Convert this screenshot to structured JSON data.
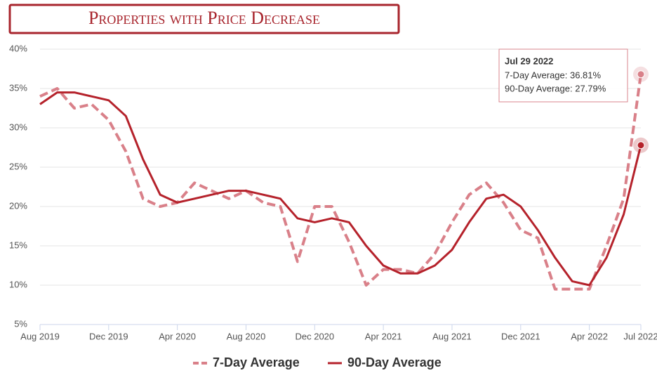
{
  "chart_data": {
    "type": "line",
    "title": "Properties with Price Decrease",
    "x": [
      "2019-08",
      "2019-09",
      "2019-10",
      "2019-11",
      "2019-12",
      "2020-01",
      "2020-02",
      "2020-03",
      "2020-04",
      "2020-05",
      "2020-06",
      "2020-07",
      "2020-08",
      "2020-09",
      "2020-10",
      "2020-11",
      "2020-12",
      "2021-01",
      "2021-02",
      "2021-03",
      "2021-04",
      "2021-05",
      "2021-06",
      "2021-07",
      "2021-08",
      "2021-09",
      "2021-10",
      "2021-11",
      "2021-12",
      "2022-01",
      "2022-02",
      "2022-03",
      "2022-04",
      "2022-05",
      "2022-06",
      "2022-07"
    ],
    "xticks": [
      {
        "value": "2019-08",
        "label": "Aug 2019"
      },
      {
        "value": "2019-12",
        "label": "Dec 2019"
      },
      {
        "value": "2020-04",
        "label": "Apr 2020"
      },
      {
        "value": "2020-08",
        "label": "Aug 2020"
      },
      {
        "value": "2020-12",
        "label": "Dec 2020"
      },
      {
        "value": "2021-04",
        "label": "Apr 2021"
      },
      {
        "value": "2021-08",
        "label": "Aug 2021"
      },
      {
        "value": "2021-12",
        "label": "Dec 2021"
      },
      {
        "value": "2022-04",
        "label": "Apr 2022"
      },
      {
        "value": "2022-07",
        "label": "Jul 2022"
      }
    ],
    "series": [
      {
        "name": "7-Day Average",
        "color": "#d98089",
        "dashed": true,
        "values": [
          34,
          35,
          32.5,
          33,
          31,
          27,
          21,
          20,
          20.5,
          23,
          22,
          21,
          22,
          20.5,
          20,
          13,
          20,
          20,
          15.5,
          10,
          12,
          12,
          11.5,
          14,
          18,
          21.5,
          23,
          20.5,
          17,
          16,
          9.5,
          9.5,
          9.5,
          15,
          21,
          36.81
        ]
      },
      {
        "name": "90-Day Average",
        "color": "#b5222b",
        "dashed": false,
        "values": [
          33,
          34.5,
          34.5,
          34,
          33.5,
          31.5,
          26,
          21.5,
          20.5,
          21,
          21.5,
          22,
          22,
          21.5,
          21,
          18.5,
          18,
          18.5,
          18,
          15,
          12.5,
          11.5,
          11.5,
          12.5,
          14.5,
          18,
          21,
          21.5,
          20,
          17,
          13.5,
          10.5,
          10,
          13.5,
          19,
          27.79
        ]
      }
    ],
    "ylim": [
      5,
      40
    ],
    "yticks": [
      {
        "value": 5,
        "label": "5%"
      },
      {
        "value": 10,
        "label": "10%"
      },
      {
        "value": 15,
        "label": "15%"
      },
      {
        "value": 20,
        "label": "20%"
      },
      {
        "value": 25,
        "label": "25%"
      },
      {
        "value": 30,
        "label": "30%"
      },
      {
        "value": 35,
        "label": "35%"
      },
      {
        "value": 40,
        "label": "40%"
      }
    ],
    "grid": true,
    "legend": "bottom",
    "tooltip": {
      "date": "Jul 29 2022",
      "items": [
        "7-Day Average: 36.81%",
        "90-Day Average: 27.79%"
      ]
    }
  }
}
